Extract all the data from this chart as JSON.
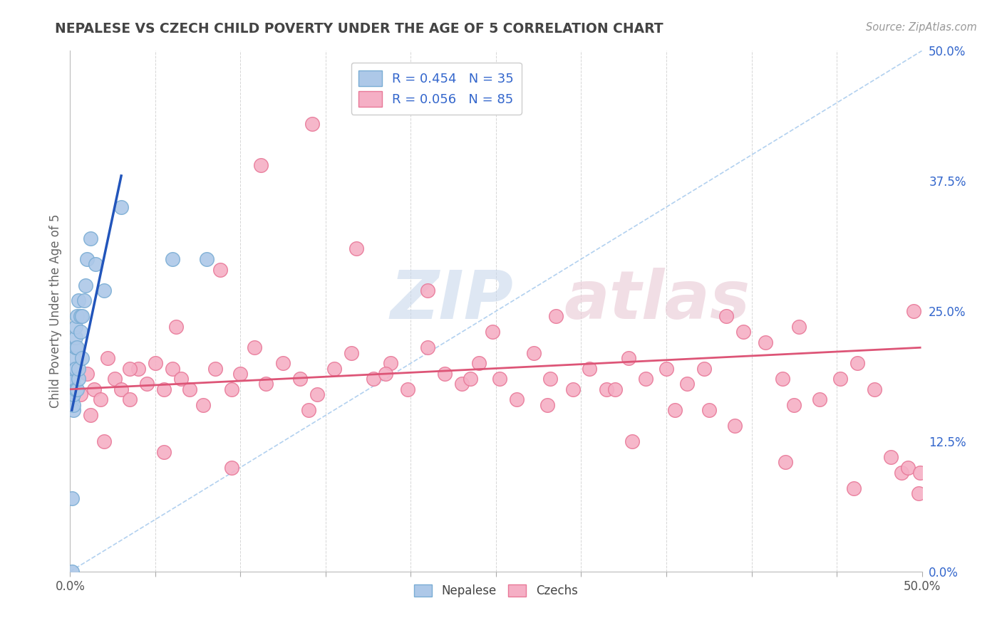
{
  "title": "NEPALESE VS CZECH CHILD POVERTY UNDER THE AGE OF 5 CORRELATION CHART",
  "source": "Source: ZipAtlas.com",
  "ylabel": "Child Poverty Under the Age of 5",
  "xlim": [
    0,
    0.5
  ],
  "ylim": [
    0,
    0.5
  ],
  "nepalese_color": "#adc8e8",
  "nepalese_edge": "#7aadd4",
  "czech_color": "#f5afc5",
  "czech_edge": "#e87898",
  "nepalese_R": 0.454,
  "nepalese_N": 35,
  "czech_R": 0.056,
  "czech_N": 85,
  "nepalese_line_color": "#2255bb",
  "czech_line_color": "#dd5577",
  "ref_line_color": "#aaccee",
  "background_color": "#ffffff",
  "grid_color": "#cccccc",
  "title_color": "#444444",
  "right_axis_color": "#3366cc",
  "nepalese_x": [
    0.001,
    0.001,
    0.001,
    0.001,
    0.001,
    0.002,
    0.002,
    0.002,
    0.002,
    0.002,
    0.002,
    0.003,
    0.003,
    0.003,
    0.003,
    0.003,
    0.004,
    0.004,
    0.004,
    0.005,
    0.005,
    0.005,
    0.006,
    0.006,
    0.007,
    0.007,
    0.008,
    0.009,
    0.01,
    0.012,
    0.015,
    0.02,
    0.03,
    0.06,
    0.08
  ],
  "nepalese_y": [
    0.0,
    0.07,
    0.165,
    0.175,
    0.185,
    0.155,
    0.16,
    0.17,
    0.185,
    0.195,
    0.205,
    0.175,
    0.195,
    0.215,
    0.225,
    0.235,
    0.175,
    0.215,
    0.245,
    0.185,
    0.195,
    0.26,
    0.23,
    0.245,
    0.205,
    0.245,
    0.26,
    0.275,
    0.3,
    0.32,
    0.295,
    0.27,
    0.35,
    0.3,
    0.3
  ],
  "czech_x": [
    0.006,
    0.01,
    0.014,
    0.018,
    0.022,
    0.026,
    0.03,
    0.035,
    0.04,
    0.045,
    0.05,
    0.055,
    0.06,
    0.065,
    0.07,
    0.078,
    0.085,
    0.095,
    0.1,
    0.108,
    0.115,
    0.125,
    0.135,
    0.145,
    0.155,
    0.165,
    0.178,
    0.188,
    0.198,
    0.21,
    0.22,
    0.23,
    0.24,
    0.252,
    0.262,
    0.272,
    0.282,
    0.295,
    0.305,
    0.315,
    0.328,
    0.338,
    0.35,
    0.362,
    0.372,
    0.385,
    0.395,
    0.408,
    0.418,
    0.428,
    0.44,
    0.452,
    0.462,
    0.472,
    0.482,
    0.488,
    0.492,
    0.495,
    0.498,
    0.499,
    0.012,
    0.035,
    0.062,
    0.088,
    0.112,
    0.142,
    0.168,
    0.21,
    0.248,
    0.285,
    0.32,
    0.355,
    0.39,
    0.425,
    0.46,
    0.02,
    0.055,
    0.095,
    0.14,
    0.185,
    0.235,
    0.28,
    0.33,
    0.375,
    0.42
  ],
  "czech_y": [
    0.17,
    0.19,
    0.175,
    0.165,
    0.205,
    0.185,
    0.175,
    0.165,
    0.195,
    0.18,
    0.2,
    0.175,
    0.195,
    0.185,
    0.175,
    0.16,
    0.195,
    0.175,
    0.19,
    0.215,
    0.18,
    0.2,
    0.185,
    0.17,
    0.195,
    0.21,
    0.185,
    0.2,
    0.175,
    0.215,
    0.19,
    0.18,
    0.2,
    0.185,
    0.165,
    0.21,
    0.185,
    0.175,
    0.195,
    0.175,
    0.205,
    0.185,
    0.195,
    0.18,
    0.195,
    0.245,
    0.23,
    0.22,
    0.185,
    0.235,
    0.165,
    0.185,
    0.2,
    0.175,
    0.11,
    0.095,
    0.1,
    0.25,
    0.075,
    0.095,
    0.15,
    0.195,
    0.235,
    0.29,
    0.39,
    0.43,
    0.31,
    0.27,
    0.23,
    0.245,
    0.175,
    0.155,
    0.14,
    0.16,
    0.08,
    0.125,
    0.115,
    0.1,
    0.155,
    0.19,
    0.185,
    0.16,
    0.125,
    0.155,
    0.105
  ],
  "nep_line_x": [
    0.001,
    0.03
  ],
  "nep_line_y": [
    0.155,
    0.38
  ],
  "czk_line_x": [
    0.0,
    0.499
  ],
  "czk_line_y": [
    0.175,
    0.215
  ]
}
